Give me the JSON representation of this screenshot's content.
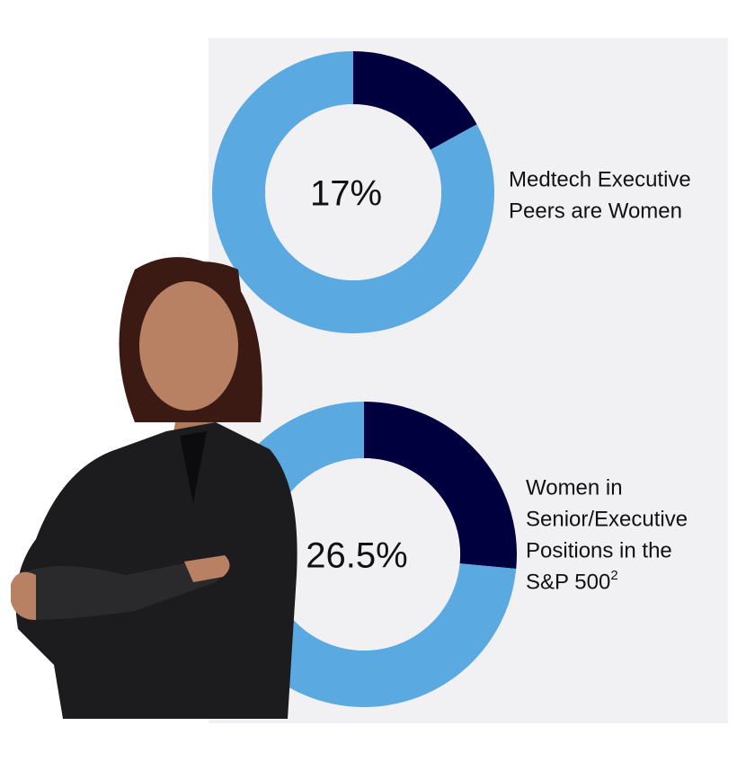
{
  "chart_data": [
    {
      "type": "donut",
      "center_label": "17%",
      "label_lines": [
        "Medtech Executive",
        "Peers are Women"
      ],
      "values": [
        17,
        83
      ],
      "colors": [
        "#00003f",
        "#5aa9e1"
      ]
    },
    {
      "type": "donut",
      "center_label": "26.5%",
      "label_lines": [
        "Women in",
        "Senior/Executive",
        "Positions in the",
        "S&P 500"
      ],
      "footnote": "2",
      "values": [
        26.5,
        73.5
      ],
      "colors": [
        "#00003f",
        "#5aa9e1"
      ]
    }
  ]
}
